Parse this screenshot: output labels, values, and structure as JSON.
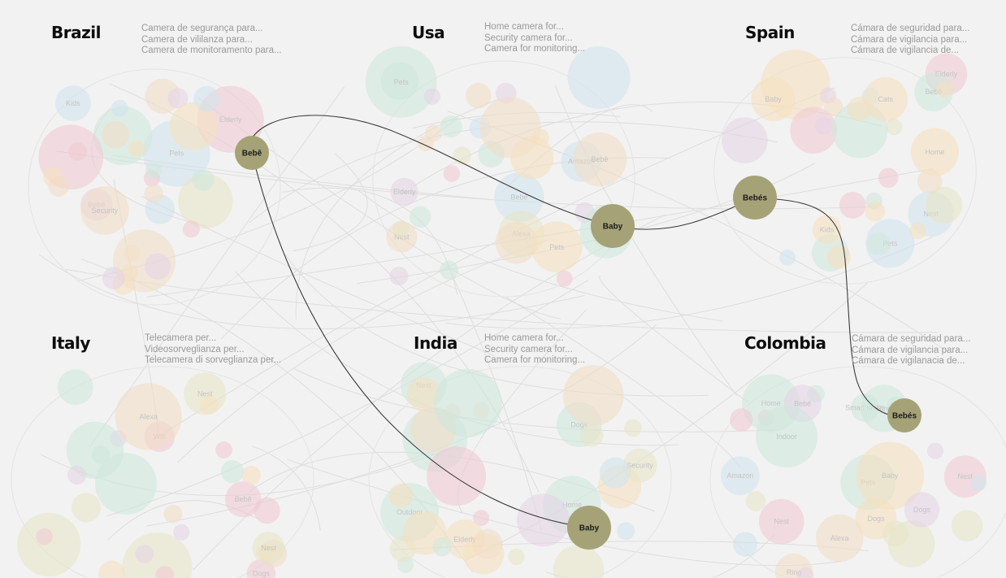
{
  "panels": [
    {
      "country": "Brazil",
      "queries": [
        "Camera de segurança para...",
        "Camera de vililanza para...",
        "Camera de monitoramento para..."
      ]
    },
    {
      "country": "Usa",
      "queries": [
        "Home camera for...",
        "Security camera for...",
        "Camera for monitoring..."
      ]
    },
    {
      "country": "Spain",
      "queries": [
        "Cámara de seguridad para...",
        "Cámara de vigilancia para...",
        "Cámara de vigilancia de..."
      ]
    },
    {
      "country": "Italy",
      "queries": [
        "Telecamera per...",
        "Videosorveglianza per...",
        "Telecamera di sorveglianza per..."
      ]
    },
    {
      "country": "India",
      "queries": [
        "Home camera for...",
        "Security camera for...",
        "Camera for monitoring..."
      ]
    },
    {
      "country": "Colombia",
      "queries": [
        "Cámara de seguridad para...",
        "Cámara de vigilancia para...",
        "Cámara de vigilanacia de..."
      ]
    }
  ],
  "highlight": {
    "color": "#a5a277",
    "nodes": [
      {
        "id": "brazil",
        "label": "Bebê"
      },
      {
        "id": "usa",
        "label": "Baby"
      },
      {
        "id": "spain",
        "label": "Bebés"
      },
      {
        "id": "india",
        "label": "Baby"
      },
      {
        "id": "colombia",
        "label": "Bebés"
      }
    ],
    "links": [
      {
        "from": "brazil",
        "to": "usa"
      },
      {
        "from": "usa",
        "to": "spain"
      },
      {
        "from": "spain",
        "to": "colombia"
      },
      {
        "from": "brazil",
        "to": "india"
      }
    ]
  },
  "background_labels": [
    "Baby",
    "Bebé",
    "Bebê",
    "Amazon",
    "Alexa",
    "Ring",
    "Outdoor",
    "Indoor",
    "Wifi",
    "Dogs",
    "Pets",
    "Home",
    "Kids",
    "Nest",
    "Cats",
    "Security",
    "Smart home",
    "Elderly"
  ],
  "palette": [
    "#f1c9d2",
    "#cde7dc",
    "#cfe3ee",
    "#f3dcc4",
    "#e3d3e6",
    "#f6e0bd",
    "#e7e3c4"
  ]
}
